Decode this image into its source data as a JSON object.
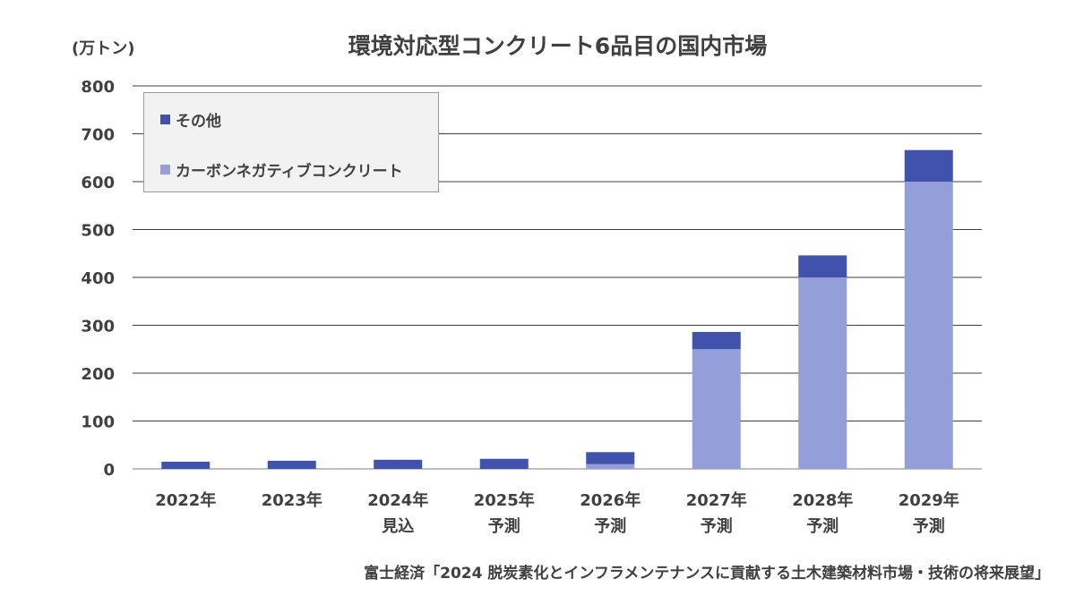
{
  "chart_data": {
    "type": "bar",
    "stacked": true,
    "title": "環境対応型コンクリート6品目の国内市場",
    "ylabel": "(万トン)",
    "ylim": [
      0,
      800
    ],
    "yticks": [
      0,
      100,
      200,
      300,
      400,
      500,
      600,
      700,
      800
    ],
    "ytick_labels": [
      "0",
      "100",
      "200",
      "300",
      "400",
      "500",
      "600",
      "700",
      "800"
    ],
    "categories": [
      [
        "2022年"
      ],
      [
        "2023年"
      ],
      [
        "2024年",
        "見込"
      ],
      [
        "2025年",
        "予測"
      ],
      [
        "2026年",
        "予測"
      ],
      [
        "2027年",
        "予測"
      ],
      [
        "2028年",
        "予測"
      ],
      [
        "2029年",
        "予測"
      ]
    ],
    "series": [
      {
        "name": "カーボンネガティブコンクリート",
        "color": "#949fd9",
        "values": [
          0,
          0,
          0,
          0,
          10,
          250,
          400,
          600
        ]
      },
      {
        "name": "その他",
        "color": "#4152ad",
        "values": [
          15,
          17,
          19,
          21,
          25,
          36,
          46,
          66
        ]
      }
    ],
    "legend_position": "top-left",
    "grid": true
  },
  "source": "富士経済「2024 脱炭素化とインフラメンテナンスに貢献する土木建築材料市場・技術の将来展望」"
}
